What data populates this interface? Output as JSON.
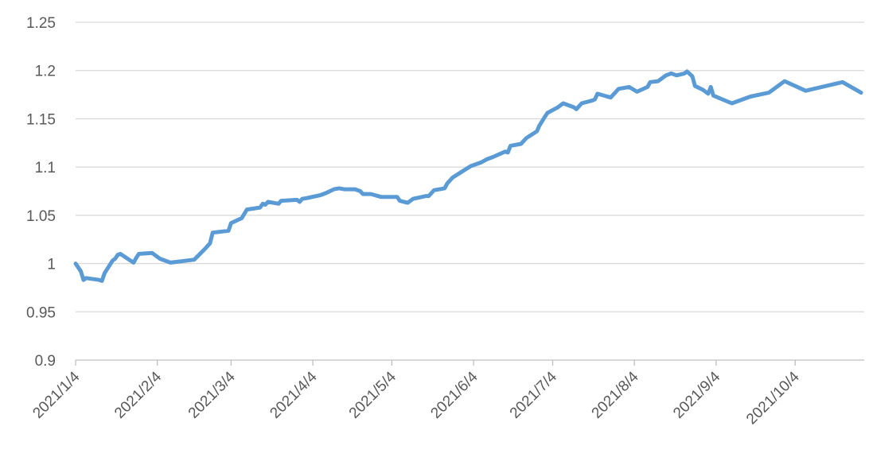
{
  "chart_data": {
    "type": "line",
    "color": "#5b9bd5",
    "grid": true,
    "ylim": [
      0.9,
      1.25
    ],
    "yticks": [
      0.9,
      0.95,
      1,
      1.05,
      1.1,
      1.15,
      1.2,
      1.25
    ],
    "xlim": [
      "2021/1/4",
      "2021/10/29"
    ],
    "xticks": [
      "2021/1/4",
      "2021/2/4",
      "2021/3/4",
      "2021/4/4",
      "2021/5/4",
      "2021/6/4",
      "2021/7/4",
      "2021/8/4",
      "2021/9/4",
      "2021/10/4"
    ],
    "x": [
      "2021/1/4",
      "2021/1/5",
      "2021/1/6",
      "2021/1/7",
      "2021/1/8",
      "2021/1/13",
      "2021/1/14",
      "2021/1/15",
      "2021/1/18",
      "2021/1/19",
      "2021/1/20",
      "2021/1/21",
      "2021/1/26",
      "2021/1/27",
      "2021/1/28",
      "2021/2/2",
      "2021/2/5",
      "2021/2/9",
      "2021/2/18",
      "2021/2/22",
      "2021/2/23",
      "2021/2/24",
      "2021/2/25",
      "2021/3/3",
      "2021/3/4",
      "2021/3/8",
      "2021/3/10",
      "2021/3/15",
      "2021/3/16",
      "2021/3/17",
      "2021/3/18",
      "2021/3/22",
      "2021/3/23",
      "2021/3/29",
      "2021/3/30",
      "2021/3/31",
      "2021/4/2",
      "2021/4/7",
      "2021/4/9",
      "2021/4/12",
      "2021/4/14",
      "2021/4/16",
      "2021/4/20",
      "2021/4/22",
      "2021/4/23",
      "2021/4/26",
      "2021/4/30",
      "2021/5/6",
      "2021/5/7",
      "2021/5/10",
      "2021/5/12",
      "2021/5/17",
      "2021/5/18",
      "2021/5/20",
      "2021/5/24",
      "2021/5/25",
      "2021/5/27",
      "2021/5/31",
      "2021/6/3",
      "2021/6/7",
      "2021/6/9",
      "2021/6/11",
      "2021/6/16",
      "2021/6/17",
      "2021/6/18",
      "2021/6/22",
      "2021/6/24",
      "2021/6/28",
      "2021/6/29",
      "2021/7/1",
      "2021/7/2",
      "2021/7/6",
      "2021/7/8",
      "2021/7/12",
      "2021/7/13",
      "2021/7/15",
      "2021/7/19",
      "2021/7/20",
      "2021/7/21",
      "2021/7/26",
      "2021/7/27",
      "2021/7/29",
      "2021/8/2",
      "2021/8/5",
      "2021/8/9",
      "2021/8/10",
      "2021/8/13",
      "2021/8/16",
      "2021/8/18",
      "2021/8/20",
      "2021/8/23",
      "2021/8/24",
      "2021/8/26",
      "2021/8/27",
      "2021/8/30",
      "2021/9/1",
      "2021/9/2",
      "2021/9/3",
      "2021/9/10",
      "2021/9/17",
      "2021/9/24",
      "2021/9/30",
      "2021/10/8",
      "2021/10/22",
      "2021/10/29"
    ],
    "values": [
      1.0,
      0.996,
      0.992,
      0.983,
      0.985,
      0.983,
      0.982,
      0.99,
      1.003,
      1.005,
      1.009,
      1.01,
      1.001,
      1.006,
      1.01,
      1.011,
      1.005,
      1.001,
      1.004,
      1.015,
      1.018,
      1.021,
      1.032,
      1.034,
      1.042,
      1.047,
      1.056,
      1.058,
      1.062,
      1.061,
      1.064,
      1.062,
      1.065,
      1.066,
      1.064,
      1.067,
      1.068,
      1.071,
      1.073,
      1.077,
      1.078,
      1.077,
      1.077,
      1.075,
      1.072,
      1.072,
      1.069,
      1.069,
      1.065,
      1.063,
      1.067,
      1.07,
      1.07,
      1.076,
      1.078,
      1.083,
      1.089,
      1.096,
      1.101,
      1.105,
      1.108,
      1.11,
      1.116,
      1.115,
      1.122,
      1.124,
      1.13,
      1.137,
      1.143,
      1.152,
      1.156,
      1.162,
      1.166,
      1.162,
      1.16,
      1.166,
      1.169,
      1.17,
      1.176,
      1.172,
      1.175,
      1.181,
      1.183,
      1.178,
      1.183,
      1.188,
      1.189,
      1.195,
      1.197,
      1.195,
      1.197,
      1.199,
      1.194,
      1.184,
      1.18,
      1.176,
      1.183,
      1.174,
      1.166,
      1.173,
      1.177,
      1.189,
      1.179,
      1.188,
      1.177
    ]
  }
}
